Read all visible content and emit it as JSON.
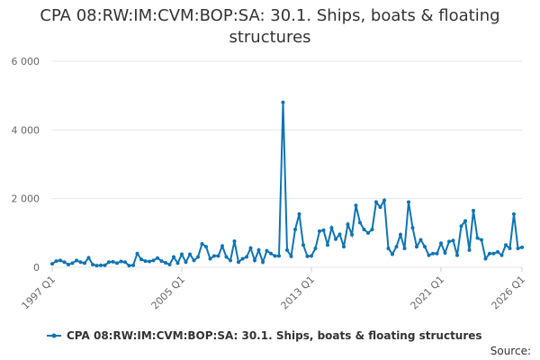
{
  "chart_data": {
    "type": "line",
    "title": "CPA 08:RW:IM:CVM:BOP:SA: 30.1. Ships, boats & floating structures",
    "source": "Source:",
    "categories": [
      "1997 Q1",
      null,
      null,
      null,
      null,
      null,
      null,
      null,
      null,
      null,
      null,
      null,
      null,
      null,
      null,
      null,
      null,
      null,
      null,
      null,
      null,
      null,
      null,
      null,
      null,
      null,
      null,
      null,
      null,
      null,
      null,
      null,
      "2005 Q1",
      null,
      null,
      null,
      null,
      null,
      null,
      null,
      null,
      null,
      null,
      null,
      null,
      null,
      null,
      null,
      null,
      null,
      null,
      null,
      null,
      null,
      null,
      null,
      null,
      null,
      null,
      null,
      null,
      null,
      null,
      null,
      "2013 Q1",
      null,
      null,
      null,
      null,
      null,
      null,
      null,
      null,
      null,
      null,
      null,
      null,
      null,
      null,
      null,
      null,
      null,
      null,
      null,
      null,
      null,
      null,
      null,
      null,
      null,
      null,
      null,
      null,
      null,
      null,
      null,
      "2021 Q1",
      null,
      null,
      null,
      null,
      null,
      null,
      null,
      null,
      null,
      null,
      null,
      null,
      null,
      null,
      null,
      null,
      null,
      null,
      null,
      "2026 Q1"
    ],
    "series": [
      {
        "name": "CPA 08:RW:IM:CVM:BOP:SA: 30.1. Ships, boats & floating structures",
        "color": "#0e74b5",
        "values": [
          100,
          180,
          200,
          150,
          80,
          120,
          200,
          150,
          120,
          280,
          80,
          50,
          60,
          60,
          150,
          160,
          120,
          170,
          150,
          50,
          60,
          400,
          230,
          180,
          170,
          200,
          270,
          180,
          130,
          80,
          300,
          120,
          380,
          150,
          380,
          200,
          300,
          680,
          600,
          250,
          330,
          330,
          620,
          300,
          200,
          760,
          150,
          250,
          300,
          560,
          200,
          500,
          150,
          480,
          400,
          330,
          330,
          4800,
          500,
          320,
          1100,
          1550,
          650,
          320,
          330,
          550,
          1050,
          1080,
          650,
          1150,
          820,
          960,
          600,
          1250,
          950,
          1800,
          1300,
          1100,
          1000,
          1100,
          1900,
          1750,
          1950,
          550,
          380,
          600,
          950,
          550,
          1900,
          1150,
          600,
          800,
          600,
          350,
          400,
          400,
          700,
          420,
          750,
          780,
          350,
          1200,
          1350,
          500,
          1650,
          850,
          800,
          250,
          400,
          400,
          450,
          350,
          650,
          550,
          1550,
          550,
          580
        ]
      }
    ],
    "ylim": [
      0,
      6000
    ],
    "yticks": [
      0,
      {
        "value": 2000,
        "label": "2 000"
      },
      {
        "value": 4000,
        "label": "4 000"
      },
      {
        "value": 6000,
        "label": "6 000"
      }
    ],
    "grid": true,
    "legend": "bottom"
  }
}
